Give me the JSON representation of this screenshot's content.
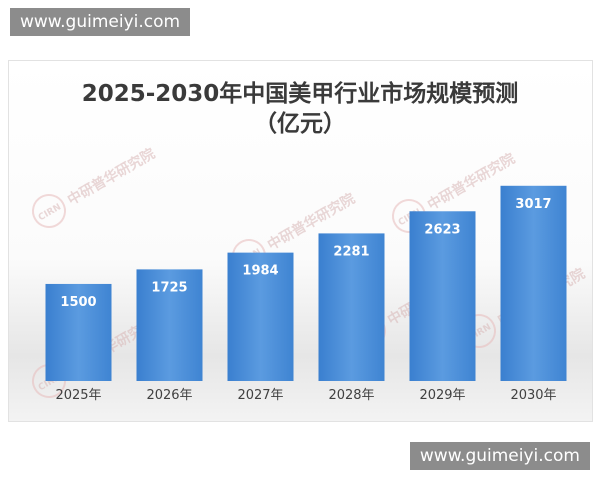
{
  "site": {
    "watermark_top": "www.guimeiyi.com",
    "watermark_bottom": "www.guimeiyi.com"
  },
  "chart_data": {
    "type": "bar",
    "title": "2025-2030年中国美甲行业市场规模预测",
    "subtitle": "（亿元）",
    "categories": [
      "2025年",
      "2026年",
      "2027年",
      "2028年",
      "2029年",
      "2030年"
    ],
    "values": [
      1500,
      1725,
      1984,
      2281,
      2623,
      3017
    ],
    "ylim": [
      0,
      3400
    ],
    "grid": false,
    "legend": "none",
    "bar_color": "#4a8fd6",
    "watermark_text": "中研普华研究院",
    "watermark_logo": "CIRN"
  }
}
